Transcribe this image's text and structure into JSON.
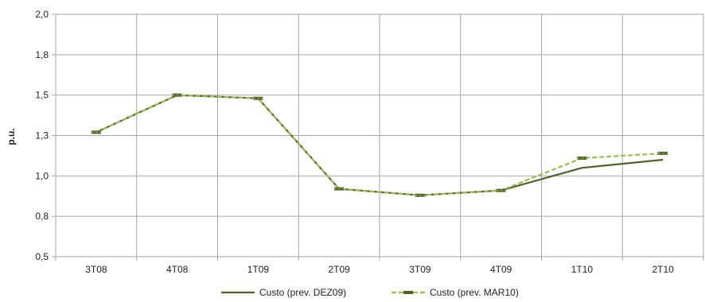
{
  "chart_data": {
    "type": "line",
    "categories": [
      "3T08",
      "4T08",
      "1T09",
      "2T09",
      "3T09",
      "4T09",
      "1T10",
      "2T10"
    ],
    "ylabel": "p.u.",
    "xlabel": "",
    "title": "",
    "ylim": [
      0.5,
      2.0
    ],
    "yticks": [
      "0,5",
      "0,8",
      "1,0",
      "1,3",
      "1,5",
      "1,8",
      "2,0"
    ],
    "grid": true,
    "legend_position": "bottom",
    "series": [
      {
        "name": "Custo (prev. DEZ09)",
        "color": "#4f6228",
        "style": "solid",
        "markers": false,
        "values": [
          1.27,
          1.5,
          1.48,
          0.92,
          0.88,
          0.91,
          1.05,
          1.1
        ]
      },
      {
        "name": "Custo (prev. MAR10)",
        "color": "#9bbb59",
        "style": "dashed",
        "markers": true,
        "marker_color": "#4f6228",
        "values": [
          1.27,
          1.5,
          1.48,
          0.92,
          0.88,
          0.91,
          1.11,
          1.14
        ]
      }
    ]
  }
}
